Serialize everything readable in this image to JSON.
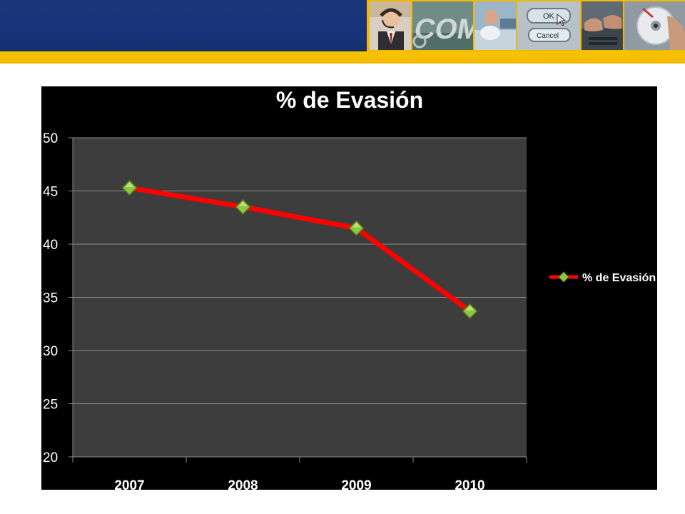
{
  "header": {
    "thumbnails": [
      "headset-agent-photo",
      "com-letters-photo",
      "computer-mouse-photo",
      "ok-cancel-dialog-photo",
      "typing-keyboard-photo",
      "cd-disc-photo"
    ],
    "dialog_ok_label": "OK",
    "dialog_cancel_label": "Cancel",
    "banner_color": "#18337a",
    "stripe_color": "#f2b900"
  },
  "chart_data": {
    "type": "line",
    "title": "% de Evasión",
    "categories": [
      "2007",
      "2008",
      "2009",
      "2010"
    ],
    "series": [
      {
        "name": "% de Evasión",
        "values": [
          45.3,
          43.5,
          41.5,
          33.7
        ],
        "color": "#ff0000",
        "marker": "diamond",
        "marker_color": "#8dc63f"
      }
    ],
    "ylim": [
      20,
      50
    ],
    "yticks": [
      20,
      25,
      30,
      35,
      40,
      45,
      50
    ],
    "xlabel": "",
    "ylabel": "",
    "grid": true,
    "legend": "right",
    "background": "#000000",
    "plot_background": "#3d3d3d"
  }
}
